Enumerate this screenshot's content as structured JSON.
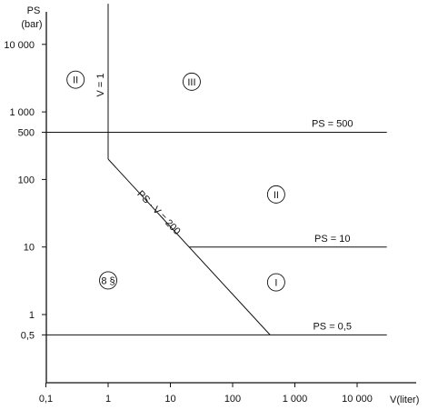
{
  "chart_data": {
    "type": "line",
    "x_scale": "log",
    "y_scale": "log",
    "x_axis": {
      "label": "V(liter)",
      "ticks": [
        {
          "value": 0.1,
          "label": "0,1"
        },
        {
          "value": 1,
          "label": "1"
        },
        {
          "value": 10,
          "label": "10"
        },
        {
          "value": 100,
          "label": "100"
        },
        {
          "value": 1000,
          "label": "1 000"
        },
        {
          "value": 10000,
          "label": "10 000"
        }
      ]
    },
    "y_axis": {
      "label_line1": "PS",
      "label_line2": "(bar)",
      "ticks": [
        {
          "value": 0.5,
          "label": "0,5"
        },
        {
          "value": 1,
          "label": "1"
        },
        {
          "value": 10,
          "label": "10"
        },
        {
          "value": 100,
          "label": "100"
        },
        {
          "value": 500,
          "label": "500"
        },
        {
          "value": 1000,
          "label": "1 000"
        },
        {
          "value": 10000,
          "label": "10 000"
        }
      ]
    },
    "series": [
      {
        "name": "V = 1",
        "points": [
          [
            1,
            200
          ],
          [
            1,
            40000
          ]
        ]
      },
      {
        "name": "PS = 500",
        "points": [
          [
            0.1,
            500
          ],
          [
            30000,
            500
          ]
        ]
      },
      {
        "name": "PS · V = 200",
        "points": [
          [
            1,
            200
          ],
          [
            400,
            0.5
          ]
        ]
      },
      {
        "name": "PS = 10",
        "points": [
          [
            20,
            10
          ],
          [
            30000,
            10
          ]
        ]
      },
      {
        "name": "PS = 0,5",
        "points": [
          [
            0.1,
            0.5
          ],
          [
            30000,
            0.5
          ]
        ]
      }
    ],
    "line_labels": [
      {
        "text": "V = 1",
        "x": 0.85,
        "y": 2500,
        "angle": -90
      },
      {
        "text": "PS = 500",
        "x": 4000,
        "y": 600,
        "angle": 0
      },
      {
        "text": "PS · V = 200",
        "x": 6,
        "y": 30,
        "angle": 46
      },
      {
        "text": "PS = 10",
        "x": 4000,
        "y": 12,
        "angle": 0
      },
      {
        "text": "PS = 0,5",
        "x": 4000,
        "y": 0.6,
        "angle": 0
      }
    ],
    "regions": [
      {
        "label": "II",
        "x": 0.3,
        "y": 3000
      },
      {
        "label": "III",
        "x": 22,
        "y": 2800
      },
      {
        "label": "II",
        "x": 500,
        "y": 60
      },
      {
        "label": "8 §",
        "x": 1,
        "y": 3.2
      },
      {
        "label": "I",
        "x": 500,
        "y": 3
      }
    ],
    "xlim": [
      0.07,
      80000
    ],
    "ylim": [
      0.1,
      40000
    ]
  }
}
